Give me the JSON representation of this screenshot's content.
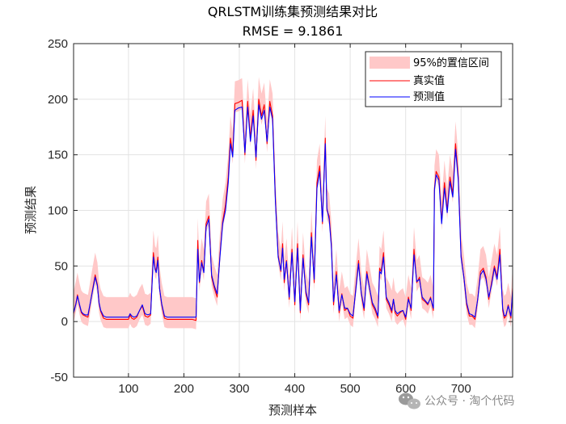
{
  "chart_data": {
    "type": "line",
    "title": "QRLSTM训练集预测结果对比",
    "subtitle": "RMSE = 9.1861",
    "xlabel": "预测样本",
    "ylabel": "预测结果",
    "xlim": [
      1,
      793
    ],
    "ylim": [
      -50,
      250
    ],
    "xticks": [
      100,
      200,
      300,
      400,
      500,
      600,
      700
    ],
    "yticks": [
      -50,
      0,
      50,
      100,
      150,
      200,
      250
    ],
    "grid": true,
    "legend_position": "top-right",
    "series": [
      {
        "name": "真实值",
        "color": "#ff0000",
        "x": [
          1,
          5,
          8,
          12,
          15,
          18,
          22,
          27,
          35,
          40,
          44,
          47,
          50,
          55,
          60,
          65,
          70,
          75,
          80,
          85,
          90,
          95,
          100,
          103,
          106,
          110,
          115,
          120,
          125,
          130,
          135,
          140,
          145,
          148,
          150,
          153,
          156,
          160,
          165,
          170,
          180,
          200,
          215,
          222,
          225,
          228,
          232,
          236,
          240,
          245,
          250,
          255,
          260,
          265,
          270,
          275,
          280,
          284,
          288,
          292,
          298,
          305,
          310,
          315,
          320,
          325,
          330,
          335,
          340,
          345,
          350,
          355,
          360,
          365,
          370,
          375,
          378,
          381,
          385,
          390,
          395,
          400,
          405,
          410,
          415,
          420,
          425,
          430,
          435,
          440,
          445,
          450,
          455,
          458,
          462,
          466,
          470,
          475,
          480,
          485,
          490,
          495,
          500,
          505,
          510,
          515,
          520,
          525,
          530,
          535,
          540,
          545,
          550,
          553,
          556,
          560,
          565,
          570,
          575,
          578,
          581,
          585,
          590,
          595,
          600,
          605,
          610,
          615,
          620,
          625,
          630,
          635,
          640,
          645,
          650,
          652,
          655,
          660,
          665,
          670,
          675,
          680,
          685,
          690,
          695,
          700,
          705,
          710,
          715,
          720,
          725,
          730,
          735,
          740,
          745,
          750,
          755,
          760,
          765,
          770,
          775,
          778,
          781,
          785,
          790,
          793
        ],
        "values": [
          7,
          16,
          24,
          14,
          8,
          6,
          5,
          4,
          28,
          42,
          33,
          16,
          9,
          3,
          2,
          2,
          2,
          2,
          2,
          2,
          2,
          2,
          2,
          6,
          3,
          2,
          4,
          10,
          14,
          5,
          4,
          6,
          62,
          48,
          46,
          58,
          30,
          15,
          3,
          2,
          2,
          2,
          2,
          1,
          73,
          35,
          55,
          45,
          88,
          95,
          40,
          30,
          22,
          60,
          90,
          105,
          130,
          165,
          150,
          196,
          197,
          199,
          150,
          198,
          165,
          190,
          145,
          200,
          185,
          195,
          160,
          198,
          185,
          110,
          60,
          45,
          70,
          35,
          55,
          20,
          65,
          15,
          70,
          8,
          60,
          25,
          15,
          80,
          35,
          125,
          140,
          88,
          165,
          100,
          95,
          70,
          15,
          45,
          8,
          25,
          10,
          12,
          5,
          3,
          30,
          55,
          25,
          10,
          45,
          30,
          15,
          10,
          3,
          48,
          45,
          62,
          20,
          15,
          8,
          20,
          8,
          5,
          8,
          10,
          2,
          22,
          10,
          65,
          35,
          40,
          20,
          18,
          15,
          22,
          10,
          120,
          135,
          130,
          90,
          125,
          100,
          130,
          115,
          160,
          130,
          60,
          40,
          15,
          5,
          5,
          2,
          20,
          45,
          48,
          40,
          20,
          35,
          50,
          40,
          65,
          10,
          3,
          5,
          15,
          3,
          30
        ]
      },
      {
        "name": "预测值",
        "color": "#0000ff",
        "x": [
          1,
          5,
          8,
          12,
          15,
          18,
          22,
          27,
          35,
          40,
          44,
          47,
          50,
          55,
          60,
          65,
          70,
          75,
          80,
          85,
          90,
          95,
          100,
          103,
          106,
          110,
          115,
          120,
          125,
          130,
          135,
          140,
          145,
          148,
          150,
          153,
          156,
          160,
          165,
          170,
          180,
          200,
          215,
          222,
          225,
          228,
          232,
          236,
          240,
          245,
          250,
          255,
          260,
          265,
          270,
          275,
          280,
          284,
          288,
          292,
          298,
          305,
          310,
          315,
          320,
          325,
          330,
          335,
          340,
          345,
          350,
          355,
          360,
          365,
          370,
          375,
          378,
          381,
          385,
          390,
          395,
          400,
          405,
          410,
          415,
          420,
          425,
          430,
          435,
          440,
          445,
          450,
          455,
          458,
          462,
          466,
          470,
          475,
          480,
          485,
          490,
          495,
          500,
          505,
          510,
          515,
          520,
          525,
          530,
          535,
          540,
          545,
          550,
          553,
          556,
          560,
          565,
          570,
          575,
          578,
          581,
          585,
          590,
          595,
          600,
          605,
          610,
          615,
          620,
          625,
          630,
          635,
          640,
          645,
          650,
          652,
          655,
          660,
          665,
          670,
          675,
          680,
          685,
          690,
          695,
          700,
          705,
          710,
          715,
          720,
          725,
          730,
          735,
          740,
          745,
          750,
          755,
          760,
          765,
          770,
          775,
          778,
          781,
          785,
          790,
          793
        ],
        "values": [
          8,
          15,
          23,
          15,
          9,
          7,
          6,
          6,
          27,
          40,
          32,
          17,
          10,
          5,
          4,
          4,
          4,
          4,
          4,
          4,
          4,
          4,
          4,
          7,
          5,
          4,
          5,
          10,
          15,
          7,
          6,
          7,
          58,
          47,
          44,
          55,
          30,
          16,
          5,
          4,
          4,
          4,
          4,
          4,
          65,
          36,
          53,
          44,
          85,
          92,
          42,
          32,
          25,
          58,
          88,
          100,
          125,
          160,
          148,
          190,
          192,
          193,
          152,
          193,
          162,
          185,
          148,
          195,
          182,
          190,
          162,
          193,
          182,
          108,
          58,
          46,
          66,
          38,
          54,
          22,
          62,
          18,
          66,
          10,
          57,
          27,
          17,
          76,
          38,
          120,
          135,
          90,
          160,
          102,
          92,
          68,
          18,
          42,
          10,
          24,
          12,
          12,
          7,
          5,
          28,
          52,
          26,
          12,
          43,
          30,
          17,
          12,
          5,
          45,
          43,
          58,
          22,
          17,
          10,
          20,
          10,
          7,
          9,
          10,
          4,
          20,
          12,
          60,
          36,
          38,
          22,
          19,
          16,
          21,
          12,
          118,
          132,
          127,
          88,
          120,
          98,
          126,
          112,
          155,
          127,
          58,
          40,
          17,
          7,
          6,
          4,
          20,
          42,
          46,
          38,
          22,
          33,
          48,
          38,
          60,
          12,
          5,
          6,
          14,
          5,
          28
        ]
      }
    ],
    "band": {
      "name": "95%的置信区间",
      "color": "#ffc8c8",
      "lower_offset": 8,
      "upper_offset": 20
    }
  },
  "watermark": "公众号 · 淘个代码",
  "wechat_icon": "wechat-icon"
}
